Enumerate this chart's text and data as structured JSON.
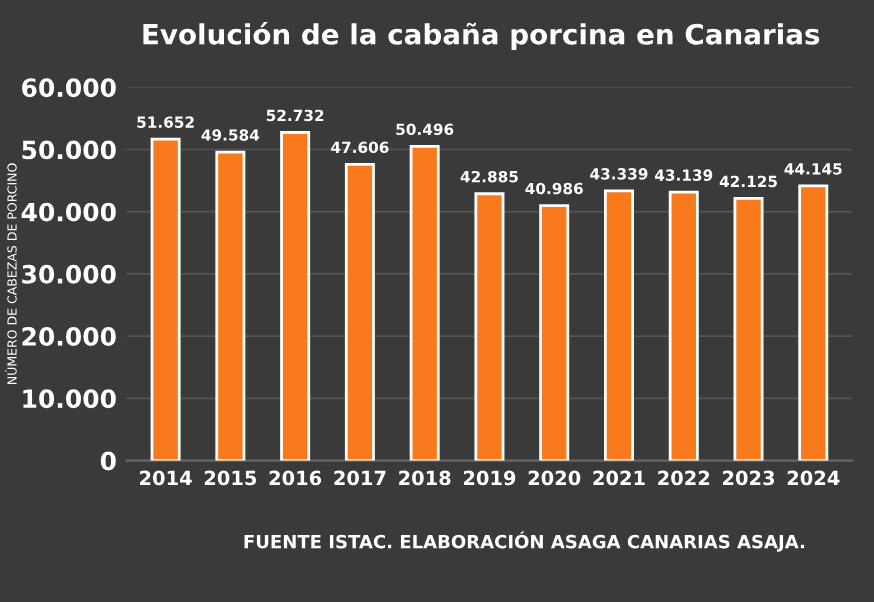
{
  "chart_data": {
    "type": "bar",
    "title": "Evolución de la cabaña porcina en Canarias",
    "ylabel": "NÚMERO DE CABEZAS DE PORCINO",
    "categories": [
      "2014",
      "2015",
      "2016",
      "2017",
      "2018",
      "2019",
      "2020",
      "2021",
      "2022",
      "2023",
      "2024"
    ],
    "values": [
      51652,
      49584,
      52732,
      47606,
      50496,
      42885,
      40986,
      43339,
      43139,
      42125,
      44145
    ],
    "value_labels": [
      "51.652",
      "49.584",
      "52.732",
      "47.606",
      "50.496",
      "42.885",
      "40.986",
      "43.339",
      "43.139",
      "42.125",
      "44.145"
    ],
    "color": "#f97a1c",
    "ylim": [
      0,
      60000
    ],
    "yticks": [
      {
        "value": 0,
        "label": "0"
      },
      {
        "value": 10000,
        "label": "10.000"
      },
      {
        "value": 20000,
        "label": "20.000"
      },
      {
        "value": 30000,
        "label": "30.000"
      },
      {
        "value": 40000,
        "label": "40.000"
      },
      {
        "value": 50000,
        "label": "50.000"
      },
      {
        "value": 60000,
        "label": "60.000"
      }
    ],
    "grid": "y",
    "annotations": [
      "FUENTE ISTAC. ELABORACIÓN ASAGA CANARIAS ASAJA."
    ]
  }
}
